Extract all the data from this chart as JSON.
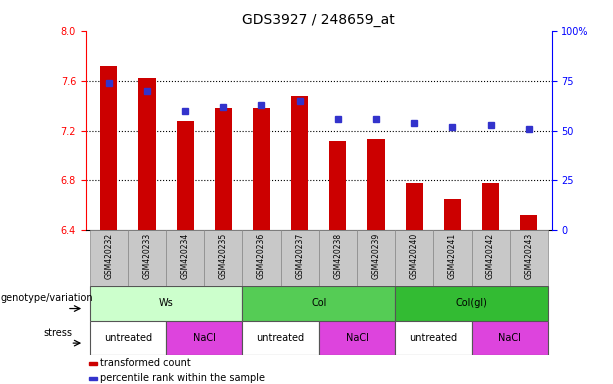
{
  "title": "GDS3927 / 248659_at",
  "samples": [
    "GSM420232",
    "GSM420233",
    "GSM420234",
    "GSM420235",
    "GSM420236",
    "GSM420237",
    "GSM420238",
    "GSM420239",
    "GSM420240",
    "GSM420241",
    "GSM420242",
    "GSM420243"
  ],
  "bar_values": [
    7.72,
    7.62,
    7.28,
    7.38,
    7.38,
    7.48,
    7.12,
    7.13,
    6.78,
    6.65,
    6.78,
    6.52
  ],
  "bar_base": 6.4,
  "dot_values": [
    74,
    70,
    60,
    62,
    63,
    65,
    56,
    56,
    54,
    52,
    53,
    51
  ],
  "ylim_left": [
    6.4,
    8.0
  ],
  "ylim_right": [
    0,
    100
  ],
  "yticks_left": [
    6.4,
    6.8,
    7.2,
    7.6,
    8.0
  ],
  "yticks_right": [
    0,
    25,
    50,
    75,
    100
  ],
  "ytick_labels_right": [
    "0",
    "25",
    "50",
    "75",
    "100%"
  ],
  "bar_color": "#cc0000",
  "dot_color": "#3333cc",
  "grid_yticks": [
    6.8,
    7.2,
    7.6
  ],
  "tick_label_area_color": "#c8c8c8",
  "genotype_groups": [
    {
      "label": "Ws",
      "start": 0,
      "end": 3,
      "color": "#ccffcc"
    },
    {
      "label": "Col",
      "start": 4,
      "end": 7,
      "color": "#55cc55"
    },
    {
      "label": "Col(gl)",
      "start": 8,
      "end": 11,
      "color": "#33bb33"
    }
  ],
  "stress_groups": [
    {
      "label": "untreated",
      "start": 0,
      "end": 1,
      "color": "#ffffff"
    },
    {
      "label": "NaCl",
      "start": 2,
      "end": 3,
      "color": "#dd44dd"
    },
    {
      "label": "untreated",
      "start": 4,
      "end": 5,
      "color": "#ffffff"
    },
    {
      "label": "NaCl",
      "start": 6,
      "end": 7,
      "color": "#dd44dd"
    },
    {
      "label": "untreated",
      "start": 8,
      "end": 9,
      "color": "#ffffff"
    },
    {
      "label": "NaCl",
      "start": 10,
      "end": 11,
      "color": "#dd44dd"
    }
  ],
  "legend_items": [
    {
      "label": "transformed count",
      "color": "#cc0000"
    },
    {
      "label": "percentile rank within the sample",
      "color": "#3333cc"
    }
  ],
  "xlabel_genotype": "genotype/variation",
  "xlabel_stress": "stress",
  "title_fontsize": 10,
  "axis_fontsize": 7.5,
  "tick_fontsize": 7,
  "xtick_fontsize": 5.5,
  "legend_fontsize": 7,
  "row_label_fontsize": 7
}
